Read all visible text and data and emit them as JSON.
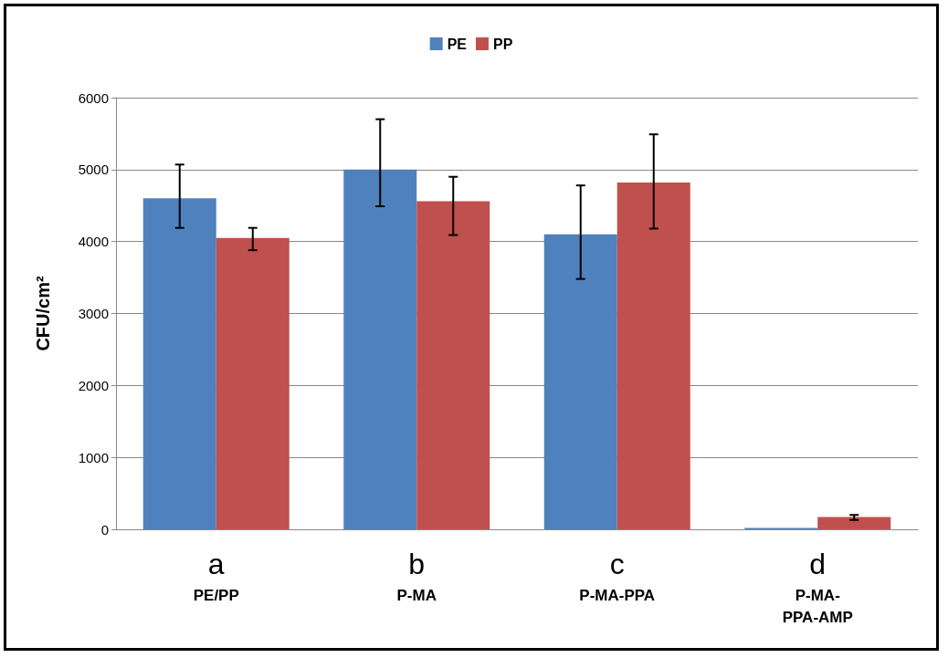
{
  "chart_data": {
    "type": "bar",
    "ylabel": "CFU/cm²",
    "categories": [
      "a\nPE/PP",
      "b\nP-MA",
      "c\nP-MA-PPA",
      "d\nP-MA-\nPPA-AMP"
    ],
    "series": [
      {
        "name": "PE",
        "color": "#4f81bd",
        "values": [
          4600,
          5000,
          4100,
          20
        ],
        "errors": [
          [
            4190,
            5070
          ],
          [
            4490,
            5700
          ],
          [
            3480,
            4780
          ],
          null
        ]
      },
      {
        "name": "PP",
        "color": "#c0504d",
        "values": [
          4050,
          4560,
          4820,
          170
        ],
        "errors": [
          [
            3880,
            4190
          ],
          [
            4090,
            4900
          ],
          [
            4180,
            5490
          ],
          [
            130,
            200
          ]
        ]
      }
    ],
    "ylim": [
      0,
      6000
    ],
    "yticks": [
      0,
      1000,
      2000,
      3000,
      4000,
      5000,
      6000
    ],
    "grid": "y",
    "legend": "top"
  }
}
